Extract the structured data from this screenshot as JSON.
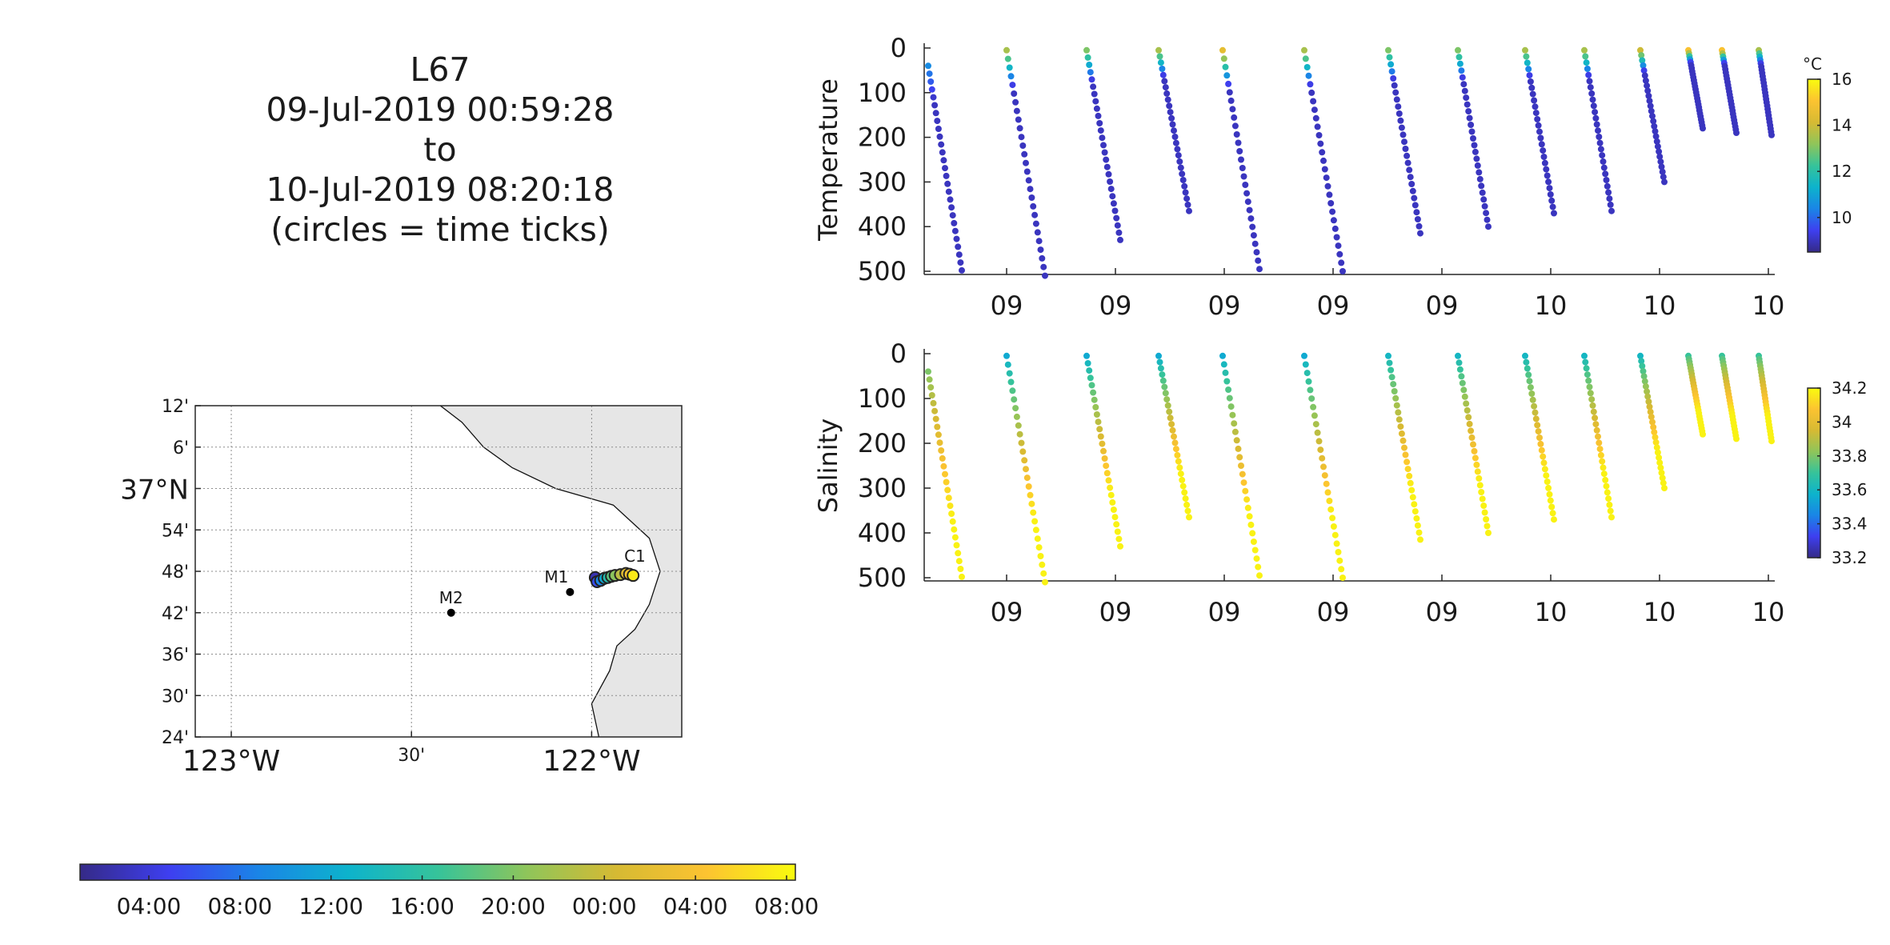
{
  "title_lines": [
    "L67",
    "09-Jul-2019 00:59:28",
    "to",
    "10-Jul-2019 08:20:18",
    "(circles = time ticks)"
  ],
  "colors": {
    "parula": [
      "#352a87",
      "#3e3ff0",
      "#1a85e6",
      "#0db3cc",
      "#36c39a",
      "#8fc55a",
      "#d6ba33",
      "#fcc331",
      "#f9fb0e"
    ],
    "land": "#e6e6e6",
    "axis": "#262626",
    "grid": "#8c8c8c"
  },
  "chart_data": [
    {
      "type": "map",
      "lat_labels": [
        "12'",
        "6'",
        "37°N",
        "54'",
        "48'",
        "42'",
        "36'",
        "30'",
        "24'"
      ],
      "lat_values": [
        37.2,
        37.1,
        37.0,
        36.9,
        36.8,
        36.7,
        36.6,
        36.5,
        36.4
      ],
      "lon_labels": [
        "123°W",
        "30'",
        "122°W"
      ],
      "lon_values": [
        -123.0,
        -122.5,
        -122.0
      ],
      "xlim": [
        -123.1,
        -121.75
      ],
      "ylim": [
        36.4,
        37.2
      ],
      "stations": [
        {
          "name": "M2",
          "lon": -122.39,
          "lat": 36.7
        },
        {
          "name": "M1",
          "lon": -122.06,
          "lat": 36.75
        },
        {
          "name": "C1",
          "lon": -121.88,
          "lat": 36.8
        }
      ],
      "track_color_ticks": [
        "04:00",
        "08:00",
        "12:00",
        "16:00",
        "20:00",
        "00:00",
        "04:00",
        "08:00"
      ]
    },
    {
      "type": "scatter",
      "ylabel": "Temperature",
      "ylim": [
        500,
        0
      ],
      "yticks": [
        0,
        100,
        200,
        300,
        400,
        500
      ],
      "xtick_labels": [
        "09",
        "09",
        "09",
        "09",
        "09",
        "10",
        "10",
        "10"
      ],
      "colorbar": {
        "unit": "°C",
        "range": [
          8.5,
          16
        ],
        "ticks": [
          10,
          12,
          14,
          16
        ]
      },
      "profiles": [
        {
          "start_depth": 40,
          "end_depth": 498,
          "surface_value": 10.5
        },
        {
          "start_depth": 5,
          "end_depth": 510,
          "surface_value": 13.5
        },
        {
          "start_depth": 5,
          "end_depth": 430,
          "surface_value": 13.0
        },
        {
          "start_depth": 5,
          "end_depth": 365,
          "surface_value": 13.5
        },
        {
          "start_depth": 5,
          "end_depth": 495,
          "surface_value": 14.5
        },
        {
          "start_depth": 5,
          "end_depth": 500,
          "surface_value": 13.5
        },
        {
          "start_depth": 5,
          "end_depth": 415,
          "surface_value": 13.0
        },
        {
          "start_depth": 5,
          "end_depth": 400,
          "surface_value": 13.0
        },
        {
          "start_depth": 5,
          "end_depth": 370,
          "surface_value": 13.5
        },
        {
          "start_depth": 5,
          "end_depth": 365,
          "surface_value": 13.5
        },
        {
          "start_depth": 5,
          "end_depth": 300,
          "surface_value": 14.0
        },
        {
          "start_depth": 5,
          "end_depth": 180,
          "surface_value": 15.0
        },
        {
          "start_depth": 5,
          "end_depth": 190,
          "surface_value": 15.0
        },
        {
          "start_depth": 5,
          "end_depth": 195,
          "surface_value": 13.5
        }
      ]
    },
    {
      "type": "scatter",
      "ylabel": "Salinity",
      "ylim": [
        500,
        0
      ],
      "yticks": [
        0,
        100,
        200,
        300,
        400,
        500
      ],
      "xtick_labels": [
        "09",
        "09",
        "09",
        "09",
        "09",
        "10",
        "10",
        "10"
      ],
      "colorbar": {
        "unit": "",
        "range": [
          33.2,
          34.2
        ],
        "ticks": [
          33.2,
          33.4,
          33.6,
          33.8,
          34,
          34.2
        ]
      },
      "profiles": [
        {
          "start_depth": 40,
          "end_depth": 498,
          "surface_value": 33.8
        },
        {
          "start_depth": 5,
          "end_depth": 510,
          "surface_value": 33.55
        },
        {
          "start_depth": 5,
          "end_depth": 430,
          "surface_value": 33.55
        },
        {
          "start_depth": 5,
          "end_depth": 365,
          "surface_value": 33.55
        },
        {
          "start_depth": 5,
          "end_depth": 495,
          "surface_value": 33.55
        },
        {
          "start_depth": 5,
          "end_depth": 500,
          "surface_value": 33.55
        },
        {
          "start_depth": 5,
          "end_depth": 415,
          "surface_value": 33.6
        },
        {
          "start_depth": 5,
          "end_depth": 400,
          "surface_value": 33.6
        },
        {
          "start_depth": 5,
          "end_depth": 370,
          "surface_value": 33.6
        },
        {
          "start_depth": 5,
          "end_depth": 365,
          "surface_value": 33.6
        },
        {
          "start_depth": 5,
          "end_depth": 300,
          "surface_value": 33.6
        },
        {
          "start_depth": 5,
          "end_depth": 180,
          "surface_value": 33.7
        },
        {
          "start_depth": 5,
          "end_depth": 190,
          "surface_value": 33.7
        },
        {
          "start_depth": 5,
          "end_depth": 195,
          "surface_value": 33.7
        }
      ]
    }
  ]
}
